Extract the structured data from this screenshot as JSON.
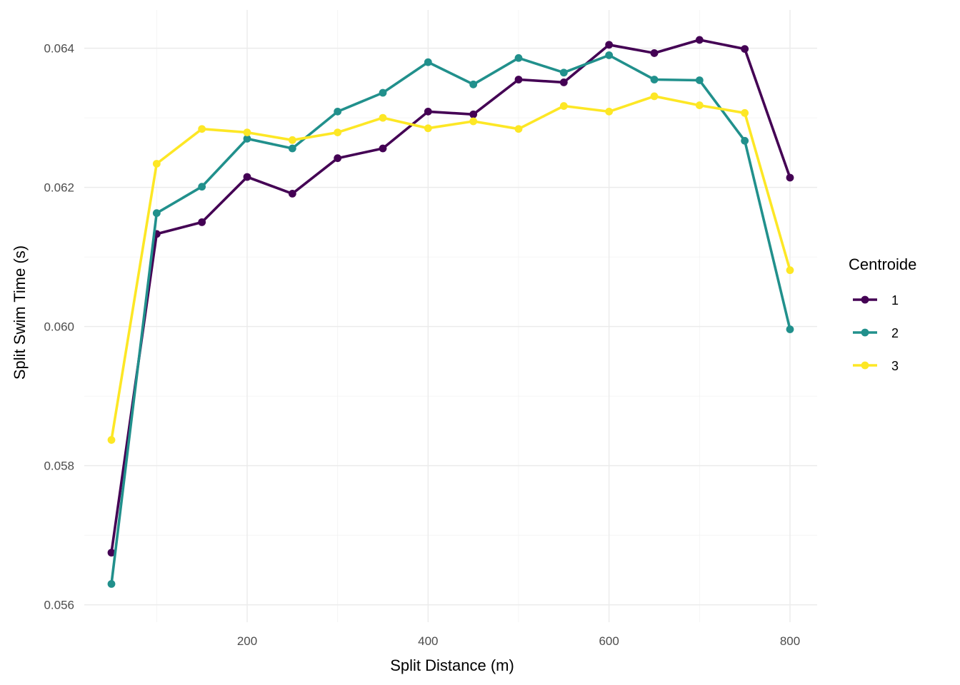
{
  "chart_data": {
    "type": "line",
    "xlabel": "Split Distance (m)",
    "ylabel": "Split Swim Time (s)",
    "xlim": [
      20,
      830
    ],
    "ylim": [
      0.05575,
      0.06455
    ],
    "x_ticks": [
      200,
      400,
      600,
      800
    ],
    "x_tick_labels": [
      "200",
      "400",
      "600",
      "800"
    ],
    "y_ticks": [
      0.056,
      0.058,
      0.06,
      0.062,
      0.064
    ],
    "y_tick_labels": [
      "0.056",
      "0.058",
      "0.060",
      "0.062",
      "0.064"
    ],
    "grid": true,
    "legend": {
      "title": "Centroide",
      "position": "right"
    },
    "x": [
      50,
      100,
      150,
      200,
      250,
      300,
      350,
      400,
      450,
      500,
      550,
      600,
      650,
      700,
      750,
      800
    ],
    "series": [
      {
        "name": "1",
        "color": "#440154",
        "values": [
          0.05675,
          0.06133,
          0.0615,
          0.06215,
          0.06191,
          0.06242,
          0.06256,
          0.06309,
          0.06305,
          0.06355,
          0.06351,
          0.06405,
          0.06393,
          0.06412,
          0.06399,
          0.06214
        ]
      },
      {
        "name": "2",
        "color": "#21908C",
        "values": [
          0.0563,
          0.06163,
          0.06201,
          0.0627,
          0.06256,
          0.06309,
          0.06336,
          0.0638,
          0.06348,
          0.06386,
          0.06365,
          0.0639,
          0.06355,
          0.06354,
          0.06267,
          0.05996
        ]
      },
      {
        "name": "3",
        "color": "#FDE725",
        "values": [
          0.05837,
          0.06234,
          0.06284,
          0.06279,
          0.06268,
          0.06279,
          0.063,
          0.06285,
          0.06295,
          0.06284,
          0.06317,
          0.06309,
          0.06331,
          0.06318,
          0.06307,
          0.06081
        ]
      }
    ]
  }
}
